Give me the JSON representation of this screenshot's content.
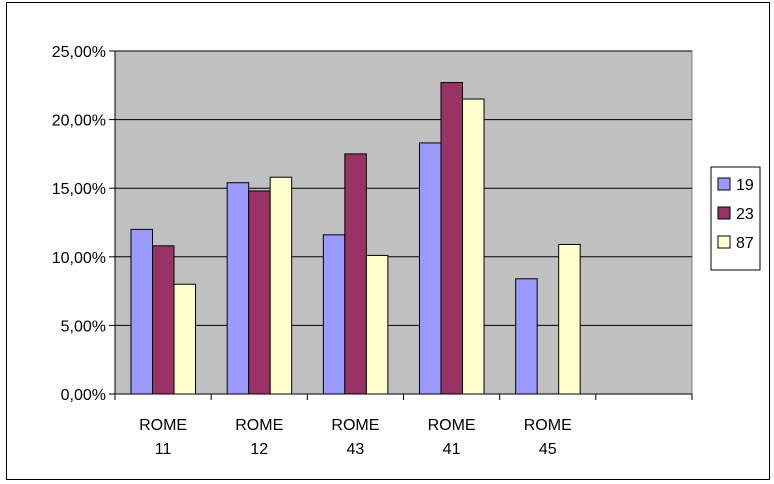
{
  "chart_data": {
    "type": "bar",
    "categories": [
      [
        "ROME",
        "11"
      ],
      [
        "ROME",
        "12"
      ],
      [
        "ROME",
        "43"
      ],
      [
        "ROME",
        "41"
      ],
      [
        "ROME",
        "45"
      ],
      [
        "",
        ""
      ]
    ],
    "series": [
      {
        "name": "19",
        "color": "#9999ff",
        "values": [
          0.12,
          0.154,
          0.116,
          0.183,
          0.084,
          null
        ]
      },
      {
        "name": "23",
        "color": "#993366",
        "values": [
          0.108,
          0.148,
          0.175,
          0.227,
          null,
          null
        ]
      },
      {
        "name": "87",
        "color": "#ffffcc",
        "values": [
          0.08,
          0.158,
          0.101,
          0.215,
          0.109,
          null
        ]
      }
    ],
    "yticks": [
      "0,00%",
      "5,00%",
      "10,00%",
      "15,00%",
      "20,00%",
      "25,00%"
    ],
    "ylim": [
      0,
      0.25
    ],
    "plot_background": "#c0c0c0",
    "grid": true,
    "legend_position": "right"
  }
}
